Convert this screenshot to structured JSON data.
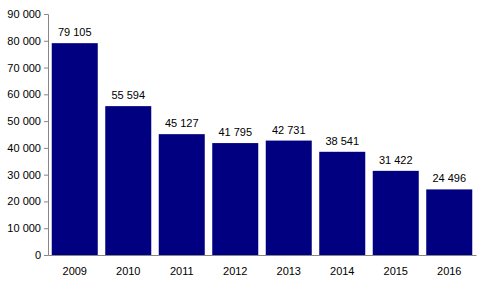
{
  "chart_data": {
    "type": "bar",
    "categories": [
      "2009",
      "2010",
      "2011",
      "2012",
      "2013",
      "2014",
      "2015",
      "2016"
    ],
    "values": [
      79105,
      55594,
      45127,
      41795,
      42731,
      38541,
      31422,
      24496
    ],
    "value_labels": [
      "79 105",
      "55 594",
      "45 127",
      "41 795",
      "42 731",
      "38 541",
      "31 422",
      "24 496"
    ],
    "color": "#000080",
    "data_labels": true,
    "grid": false,
    "ylim": [
      0,
      90000
    ],
    "yticks": [
      0,
      {
        "value": 10000,
        "label": "10 000"
      },
      {
        "value": 20000,
        "label": "20 000"
      },
      {
        "value": 30000,
        "label": "30 000"
      },
      {
        "value": 40000,
        "label": "40 000"
      },
      {
        "value": 50000,
        "label": "50 000"
      },
      {
        "value": 60000,
        "label": "60 000"
      },
      {
        "value": 70000,
        "label": "70 000"
      },
      {
        "value": 80000,
        "label": "80 000"
      },
      {
        "value": 90000,
        "label": "90 000"
      }
    ]
  }
}
